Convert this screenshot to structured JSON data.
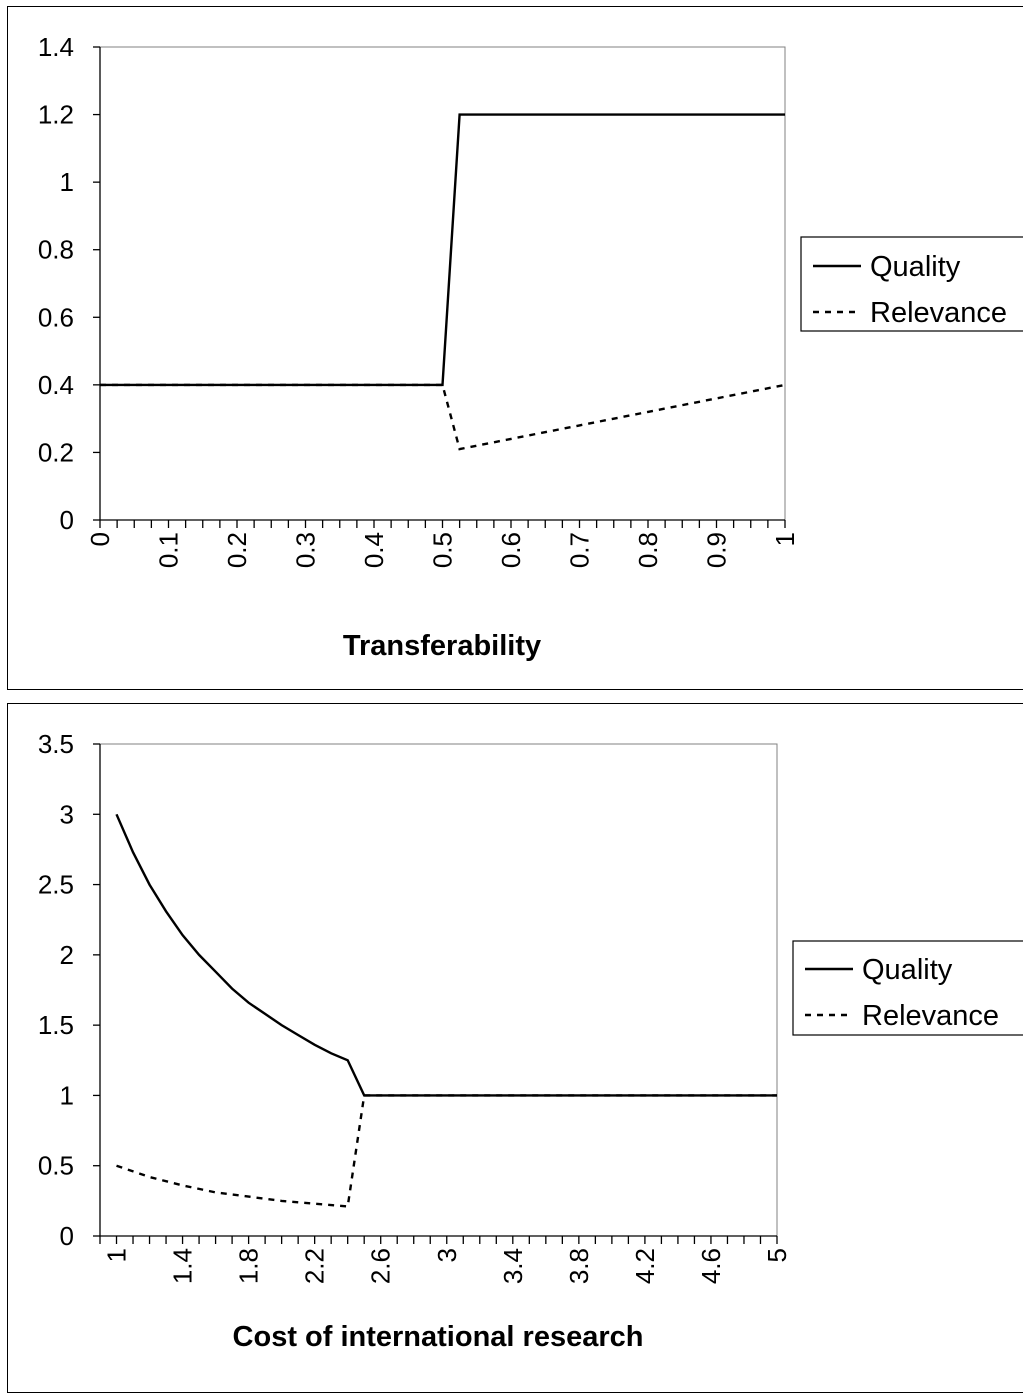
{
  "chart_data": [
    {
      "type": "line",
      "xlabel": "Transferability",
      "ylabel": "",
      "xlim": [
        0,
        1
      ],
      "ylim": [
        0,
        1.4
      ],
      "y_ticks": [
        "0",
        "0.2",
        "0.4",
        "0.6",
        "0.8",
        "1",
        "1.2",
        "1.4"
      ],
      "x_tick_labels": [
        "0",
        "0.1",
        "0.2",
        "0.3",
        "0.4",
        "0.5",
        "0.6",
        "0.7",
        "0.8",
        "0.9",
        "1"
      ],
      "x_minor_tick_step": 0.025,
      "legend_position": "right",
      "grid": false,
      "series": [
        {
          "name": "Quality",
          "style": "solid",
          "color": "#000000",
          "x": [
            0,
            0.5,
            0.525,
            1
          ],
          "y": [
            0.4,
            0.4,
            1.2,
            1.2
          ]
        },
        {
          "name": "Relevance",
          "style": "dashed",
          "color": "#000000",
          "x": [
            0,
            0.5,
            0.525,
            0.6,
            0.7,
            0.8,
            0.9,
            1
          ],
          "y": [
            0.4,
            0.4,
            0.21,
            0.24,
            0.28,
            0.32,
            0.36,
            0.4
          ]
        }
      ]
    },
    {
      "type": "line",
      "xlabel": "Cost of international research",
      "ylabel": "",
      "xlim": [
        0.9,
        5
      ],
      "ylim": [
        0,
        3.5
      ],
      "y_ticks": [
        "0",
        "0.5",
        "1",
        "1.5",
        "2",
        "2.5",
        "3",
        "3.5"
      ],
      "x_tick_labels": [
        "1",
        "1.4",
        "1.8",
        "2.2",
        "2.6",
        "3",
        "3.4",
        "3.8",
        "4.2",
        "4.6",
        "5"
      ],
      "x_minor_tick_step": 0.1,
      "legend_position": "right",
      "grid": false,
      "series": [
        {
          "name": "Quality",
          "style": "solid",
          "color": "#000000",
          "x": [
            1,
            1.1,
            1.2,
            1.3,
            1.4,
            1.5,
            1.6,
            1.7,
            1.8,
            1.9,
            2,
            2.1,
            2.2,
            2.3,
            2.4,
            2.5,
            5
          ],
          "y": [
            3,
            2.73,
            2.5,
            2.31,
            2.14,
            2,
            1.88,
            1.76,
            1.66,
            1.58,
            1.5,
            1.43,
            1.36,
            1.3,
            1.25,
            1,
            1
          ]
        },
        {
          "name": "Relevance",
          "style": "dashed",
          "color": "#000000",
          "x": [
            1,
            1.2,
            1.4,
            1.6,
            1.8,
            2,
            2.2,
            2.4,
            2.5,
            5
          ],
          "y": [
            0.5,
            0.42,
            0.36,
            0.31,
            0.28,
            0.25,
            0.23,
            0.21,
            1,
            1
          ]
        }
      ]
    }
  ]
}
